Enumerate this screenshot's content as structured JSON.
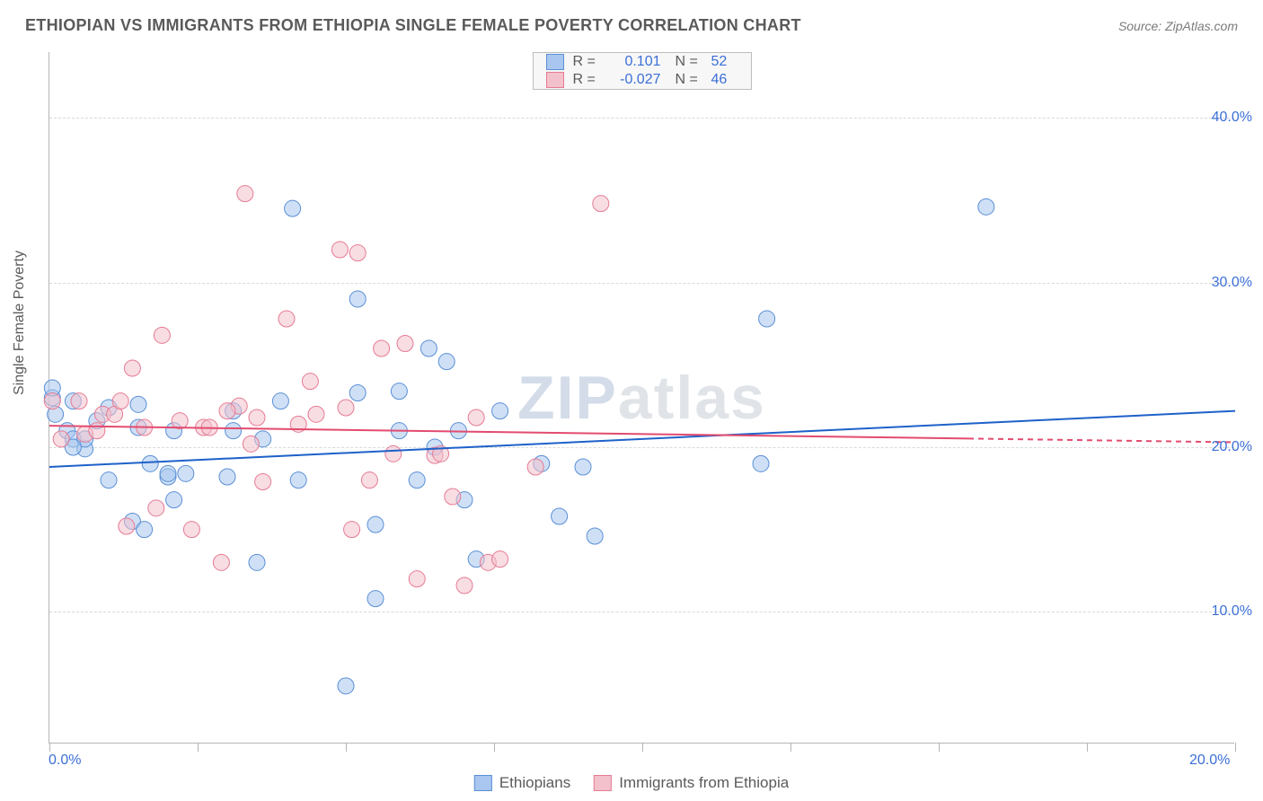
{
  "meta": {
    "title": "ETHIOPIAN VS IMMIGRANTS FROM ETHIOPIA SINGLE FEMALE POVERTY CORRELATION CHART",
    "source": "Source: ZipAtlas.com",
    "y_axis_label": "Single Female Poverty",
    "watermark_prefix": "ZIP",
    "watermark_suffix": "atlas"
  },
  "chart": {
    "type": "scatter",
    "xlim": [
      0,
      20
    ],
    "ylim": [
      2,
      44
    ],
    "x_tick_positions": [
      0,
      2.5,
      5,
      7.5,
      10,
      12.5,
      15,
      17.5,
      20
    ],
    "x_tick_labels": {
      "0": "0.0%",
      "20": "20.0%"
    },
    "y_gridlines": [
      10,
      20,
      30,
      40
    ],
    "y_tick_labels": {
      "10": "10.0%",
      "20": "20.0%",
      "30": "30.0%",
      "40": "40.0%"
    },
    "background_color": "#ffffff",
    "grid_color": "#d9d9d9",
    "axis_color": "#b5b5b5",
    "tick_label_color": "#3b6fd6",
    "marker_radius": 9,
    "marker_opacity": 0.55,
    "line_width": 2,
    "series": [
      {
        "name": "Ethiopians",
        "fill_color": "#a8c6ef",
        "stroke_color": "#5a8fd6",
        "line_color": "#1e61c9",
        "R": "0.101",
        "N": "52",
        "trend": {
          "x1": 0,
          "y1": 18.8,
          "x2": 20,
          "y2": 22.2,
          "dash_from_x": null
        },
        "points": [
          [
            0.05,
            23.0
          ],
          [
            0.1,
            22.0
          ],
          [
            0.3,
            21.0
          ],
          [
            0.4,
            22.8
          ],
          [
            0.4,
            20.5
          ],
          [
            0.6,
            19.9
          ],
          [
            0.6,
            20.5
          ],
          [
            0.8,
            21.6
          ],
          [
            1.0,
            18.0
          ],
          [
            1.0,
            22.4
          ],
          [
            1.4,
            15.5
          ],
          [
            1.5,
            21.2
          ],
          [
            1.5,
            22.6
          ],
          [
            1.6,
            15.0
          ],
          [
            1.7,
            19.0
          ],
          [
            2.0,
            18.2
          ],
          [
            2.0,
            18.4
          ],
          [
            2.1,
            21.0
          ],
          [
            2.1,
            16.8
          ],
          [
            2.3,
            18.4
          ],
          [
            3.0,
            18.2
          ],
          [
            3.1,
            22.2
          ],
          [
            3.1,
            21.0
          ],
          [
            3.5,
            13.0
          ],
          [
            3.6,
            20.5
          ],
          [
            3.9,
            22.8
          ],
          [
            4.1,
            34.5
          ],
          [
            4.2,
            18.0
          ],
          [
            5.0,
            5.5
          ],
          [
            5.2,
            23.3
          ],
          [
            5.2,
            29.0
          ],
          [
            5.5,
            10.8
          ],
          [
            5.5,
            15.3
          ],
          [
            5.9,
            21.0
          ],
          [
            5.9,
            23.4
          ],
          [
            6.2,
            18.0
          ],
          [
            6.4,
            26.0
          ],
          [
            6.5,
            20.0
          ],
          [
            6.7,
            25.2
          ],
          [
            6.9,
            21.0
          ],
          [
            7.0,
            16.8
          ],
          [
            7.2,
            13.2
          ],
          [
            7.6,
            22.2
          ],
          [
            8.3,
            19.0
          ],
          [
            8.6,
            15.8
          ],
          [
            9.0,
            18.8
          ],
          [
            9.2,
            14.6
          ],
          [
            12.0,
            19.0
          ],
          [
            12.1,
            27.8
          ],
          [
            15.8,
            34.6
          ],
          [
            0.05,
            23.6
          ],
          [
            0.4,
            20.0
          ]
        ]
      },
      {
        "name": "Immigrants from Ethiopia",
        "fill_color": "#f3c1cc",
        "stroke_color": "#e67b93",
        "line_color": "#e34b6f",
        "R": "-0.027",
        "N": "46",
        "trend": {
          "x1": 0,
          "y1": 21.3,
          "x2": 20,
          "y2": 20.3,
          "dash_from_x": 15.5
        },
        "points": [
          [
            0.05,
            22.8
          ],
          [
            0.2,
            20.5
          ],
          [
            0.5,
            22.8
          ],
          [
            0.6,
            20.8
          ],
          [
            0.8,
            21.0
          ],
          [
            0.9,
            22.0
          ],
          [
            1.1,
            22.0
          ],
          [
            1.2,
            22.8
          ],
          [
            1.3,
            15.2
          ],
          [
            1.4,
            24.8
          ],
          [
            1.6,
            21.2
          ],
          [
            1.8,
            16.3
          ],
          [
            1.9,
            26.8
          ],
          [
            2.2,
            21.6
          ],
          [
            2.4,
            15.0
          ],
          [
            2.6,
            21.2
          ],
          [
            2.7,
            21.2
          ],
          [
            2.9,
            13.0
          ],
          [
            3.2,
            22.5
          ],
          [
            3.3,
            35.4
          ],
          [
            3.4,
            20.2
          ],
          [
            3.5,
            21.8
          ],
          [
            3.6,
            17.9
          ],
          [
            4.0,
            27.8
          ],
          [
            4.2,
            21.4
          ],
          [
            4.4,
            24.0
          ],
          [
            4.9,
            32.0
          ],
          [
            5.0,
            22.4
          ],
          [
            5.1,
            15.0
          ],
          [
            5.2,
            31.8
          ],
          [
            5.4,
            18.0
          ],
          [
            5.6,
            26.0
          ],
          [
            5.8,
            19.6
          ],
          [
            6.0,
            26.3
          ],
          [
            6.2,
            12.0
          ],
          [
            6.5,
            19.5
          ],
          [
            6.6,
            19.6
          ],
          [
            6.8,
            17.0
          ],
          [
            7.0,
            11.6
          ],
          [
            7.2,
            21.8
          ],
          [
            7.4,
            13.0
          ],
          [
            7.6,
            13.2
          ],
          [
            8.2,
            18.8
          ],
          [
            9.3,
            34.8
          ],
          [
            4.5,
            22.0
          ],
          [
            3.0,
            22.2
          ]
        ]
      }
    ]
  },
  "legend_bottom": [
    {
      "label": "Ethiopians",
      "fill": "#a8c6ef",
      "stroke": "#5a8fd6"
    },
    {
      "label": "Immigrants from Ethiopia",
      "fill": "#f3c1cc",
      "stroke": "#e67b93"
    }
  ]
}
